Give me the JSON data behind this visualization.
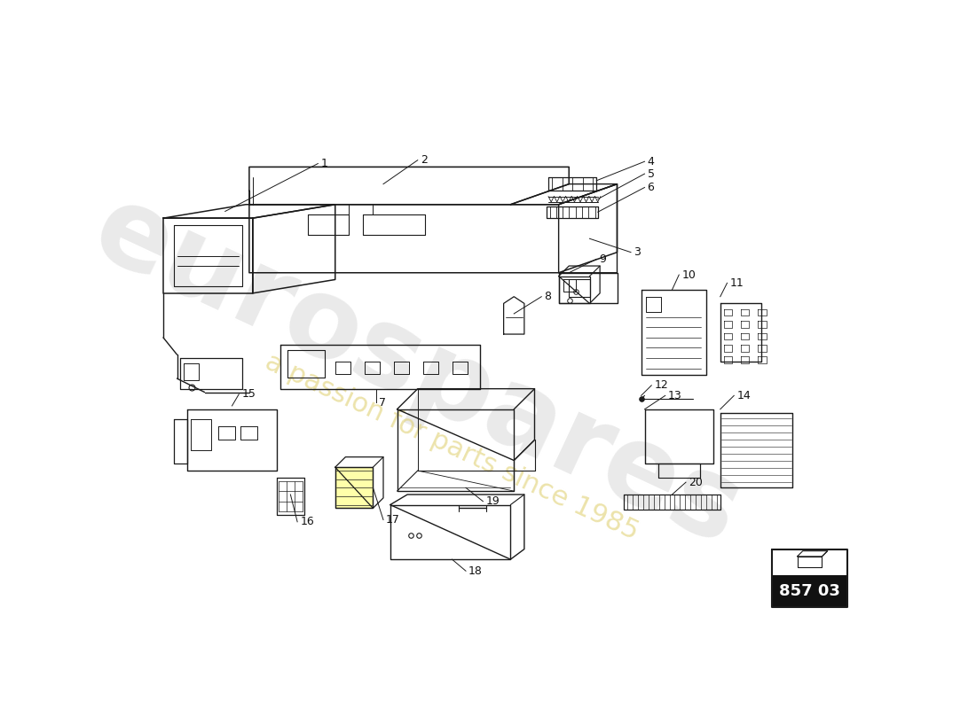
{
  "background_color": "#ffffff",
  "part_number": "857 03",
  "watermark_text1": "eurospares",
  "watermark_text2": "a passion for parts since 1985",
  "line_color": "#1a1a1a",
  "label_color": "#111111",
  "label_fontsize": 9
}
